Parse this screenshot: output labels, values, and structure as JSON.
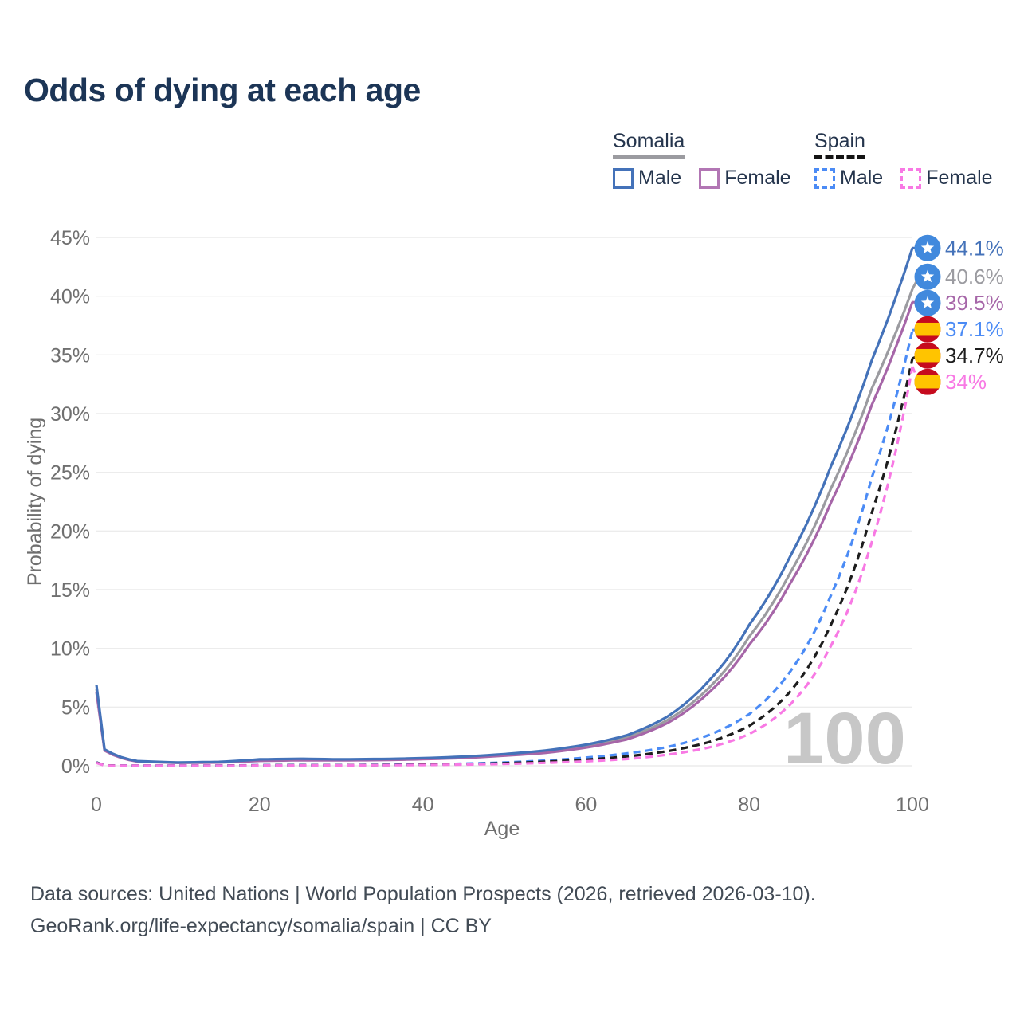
{
  "header": {
    "title": "Odds of dying at each age"
  },
  "legend": {
    "groups": [
      {
        "label": "Somalia",
        "line_style": "solid",
        "underline_color": "#9b9ba0",
        "items": [
          {
            "label": "Male",
            "color": "#4472b9"
          },
          {
            "label": "Female",
            "color": "#a666a8"
          }
        ]
      },
      {
        "label": "Spain",
        "line_style": "dashed",
        "underline_color": "#141414",
        "items": [
          {
            "label": "Male",
            "color": "#4b8bf5"
          },
          {
            "label": "Female",
            "color": "#f879e4"
          }
        ]
      }
    ]
  },
  "chart_data": {
    "type": "line",
    "title": "Odds of dying at each age",
    "xlabel": "Age",
    "ylabel": "Probability of dying",
    "xlim": [
      0,
      100
    ],
    "ylim": [
      0,
      45
    ],
    "x_ticks": [
      0,
      20,
      40,
      60,
      80,
      100
    ],
    "y_ticks": [
      0,
      5,
      10,
      15,
      20,
      25,
      30,
      35,
      40,
      45
    ],
    "y_tick_suffix": "%",
    "grid": "horizontal",
    "legend_position": "top-right",
    "watermark": "100",
    "ages": [
      0,
      1,
      5,
      10,
      15,
      20,
      25,
      30,
      35,
      40,
      45,
      50,
      55,
      60,
      65,
      70,
      75,
      80,
      85,
      90,
      95,
      100
    ],
    "series": [
      {
        "name": "Somalia Male",
        "country": "Somalia",
        "flag": "somalia",
        "color": "#4472b9",
        "dashed": false,
        "end_label": "44.1%",
        "values": [
          6.9,
          1.4,
          0.4,
          0.28,
          0.33,
          0.55,
          0.6,
          0.55,
          0.58,
          0.65,
          0.78,
          1.0,
          1.3,
          1.8,
          2.6,
          4.2,
          7.2,
          12.0,
          17.8,
          25.5,
          34.5,
          44.1
        ]
      },
      {
        "name": "Somalia (both sexes)",
        "country": "Somalia",
        "flag": "somalia",
        "color": "#9b9ba0",
        "dashed": false,
        "end_label": "40.6%",
        "values": [
          6.6,
          1.35,
          0.38,
          0.26,
          0.3,
          0.48,
          0.53,
          0.5,
          0.53,
          0.6,
          0.72,
          0.92,
          1.2,
          1.65,
          2.4,
          3.9,
          6.6,
          11.0,
          16.4,
          23.6,
          32.1,
          40.6
        ]
      },
      {
        "name": "Somalia Female",
        "country": "Somalia",
        "flag": "somalia",
        "color": "#a666a8",
        "dashed": false,
        "end_label": "39.5%",
        "values": [
          6.3,
          1.3,
          0.36,
          0.25,
          0.28,
          0.42,
          0.47,
          0.46,
          0.49,
          0.56,
          0.67,
          0.86,
          1.1,
          1.55,
          2.25,
          3.65,
          6.2,
          10.3,
          15.5,
          22.4,
          30.7,
          39.5
        ]
      },
      {
        "name": "Spain Male",
        "country": "Spain",
        "flag": "spain",
        "color": "#4b8bf5",
        "dashed": true,
        "end_label": "37.1%",
        "values": [
          0.3,
          0.03,
          0.01,
          0.01,
          0.02,
          0.05,
          0.06,
          0.06,
          0.08,
          0.12,
          0.18,
          0.28,
          0.45,
          0.7,
          1.05,
          1.6,
          2.6,
          4.4,
          8.0,
          14.5,
          24.5,
          37.1
        ]
      },
      {
        "name": "Spain (both sexes)",
        "country": "Spain",
        "flag": "spain",
        "color": "#1d1d1d",
        "dashed": true,
        "end_label": "34.7%",
        "values": [
          0.28,
          0.025,
          0.009,
          0.009,
          0.016,
          0.035,
          0.045,
          0.05,
          0.065,
          0.095,
          0.14,
          0.22,
          0.35,
          0.52,
          0.8,
          1.25,
          2.0,
          3.4,
          6.3,
          12.0,
          21.5,
          34.7
        ]
      },
      {
        "name": "Spain Female",
        "country": "Spain",
        "flag": "spain",
        "color": "#f879e4",
        "dashed": true,
        "end_label": "34%",
        "values": [
          0.25,
          0.02,
          0.008,
          0.008,
          0.013,
          0.025,
          0.03,
          0.035,
          0.05,
          0.07,
          0.1,
          0.16,
          0.25,
          0.38,
          0.58,
          0.95,
          1.55,
          2.7,
          5.2,
          10.2,
          19.0,
          34.0
        ]
      }
    ],
    "flag_colors": {
      "somalia_blue": "#4189dd",
      "somalia_star": "#ffffff",
      "spain_red": "#c60b1e",
      "spain_yellow": "#ffc400"
    }
  },
  "footer": {
    "line1": "Data sources: United Nations | World Population Prospects (2026, retrieved 2026-03-10).",
    "line2": "GeoRank.org/life-expectancy/somalia/spain | CC BY"
  }
}
